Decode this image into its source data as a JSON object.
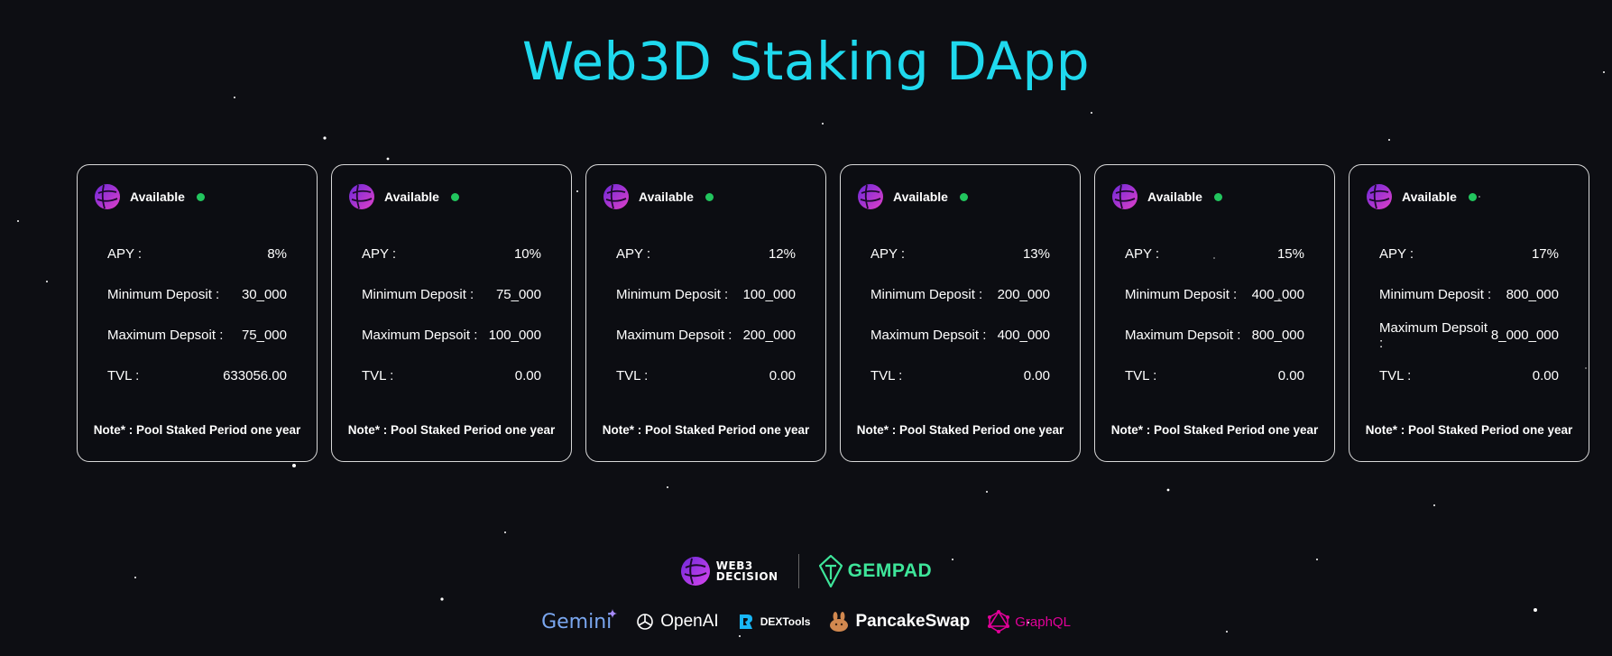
{
  "page": {
    "title": "Web3D Staking DApp"
  },
  "pools": [
    {
      "status": "Available",
      "apy_label": "APY :",
      "apy": "8%",
      "min_label": "Minimum Deposit :",
      "min": "30_000",
      "max_label": "Maximum Depsoit :",
      "max": "75_000",
      "tvl_label": "TVL :",
      "tvl": "633056.00",
      "note": "Note* : Pool Staked Period one year"
    },
    {
      "status": "Available",
      "apy_label": "APY :",
      "apy": "10%",
      "min_label": "Minimum Deposit :",
      "min": "75_000",
      "max_label": "Maximum Depsoit :",
      "max": "100_000",
      "tvl_label": "TVL :",
      "tvl": "0.00",
      "note": "Note* : Pool Staked Period one year"
    },
    {
      "status": "Available",
      "apy_label": "APY :",
      "apy": "12%",
      "min_label": "Minimum Deposit :",
      "min": "100_000",
      "max_label": "Maximum Depsoit :",
      "max": "200_000",
      "tvl_label": "TVL :",
      "tvl": "0.00",
      "note": "Note* : Pool Staked Period one year"
    },
    {
      "status": "Available",
      "apy_label": "APY :",
      "apy": "13%",
      "min_label": "Minimum Deposit :",
      "min": "200_000",
      "max_label": "Maximum Depsoit :",
      "max": "400_000",
      "tvl_label": "TVL :",
      "tvl": "0.00",
      "note": "Note* : Pool Staked Period one year"
    },
    {
      "status": "Available",
      "apy_label": "APY :",
      "apy": "15%",
      "min_label": "Minimum Deposit :",
      "min": "400_000",
      "max_label": "Maximum Depsoit :",
      "max": "800_000",
      "tvl_label": "TVL :",
      "tvl": "0.00",
      "note": "Note* : Pool Staked Period one year"
    },
    {
      "status": "Available",
      "apy_label": "APY :",
      "apy": "17%",
      "min_label": "Minimum Deposit :",
      "min": "800_000",
      "max_label": "Maximum Depsoit :",
      "max": "8_000_000",
      "tvl_label": "TVL :",
      "tvl": "0.00",
      "note": "Note* : Pool Staked Period one year"
    }
  ],
  "partners": {
    "web3_decision": {
      "line1": "WEB3",
      "line2": "DECISION",
      "icon": "web3-decision-logo-icon"
    },
    "gempad": {
      "label": "GEMPAD",
      "icon": "gempad-logo-icon"
    },
    "gemini": {
      "label": "Gemini",
      "icon": "gemini-sparkle-icon"
    },
    "openai": {
      "label": "OpenAI",
      "icon": "openai-logo-icon"
    },
    "dextools": {
      "label": "DEXTools",
      "icon": "dextools-logo-icon"
    },
    "pancakeswap": {
      "label": "PancakeSwap",
      "icon": "pancake-bunny-icon"
    },
    "graphql": {
      "label": "GraphQL",
      "icon": "graphql-logo-icon"
    }
  },
  "colors": {
    "background": "#0d0e13",
    "title": "#1fd9ee",
    "status_dot": "#22c55e",
    "gempad": "#3ee59a",
    "graphql": "#e10098"
  }
}
